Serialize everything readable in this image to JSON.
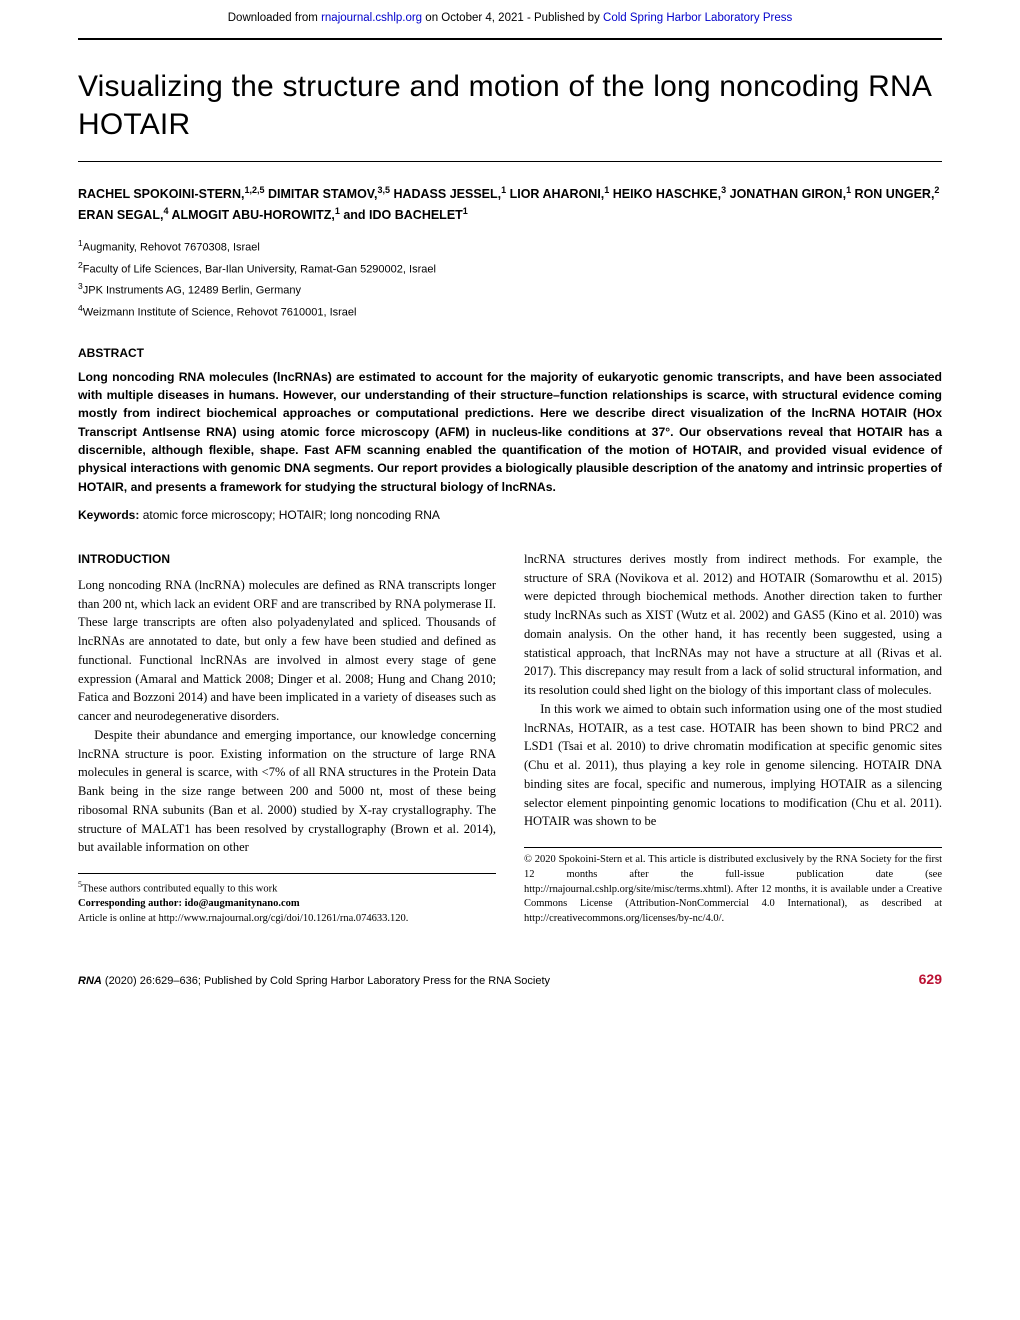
{
  "download_bar": {
    "prefix": "Downloaded from ",
    "link1_text": "rnajournal.cshlp.org",
    "mid": " on October 4, 2021 - Published by ",
    "link2_text": "Cold Spring Harbor Laboratory Press"
  },
  "title": "Visualizing the structure and motion of the long noncoding RNA HOTAIR",
  "authors_html": "RACHEL SPOKOINI-STERN,<sup>1,2,5</sup> DIMITAR STAMOV,<sup>3,5</sup> HADASS JESSEL,<sup>1</sup> LIOR AHARONI,<sup>1</sup> HEIKO HASCHKE,<sup>3</sup> JONATHAN GIRON,<sup>1</sup> RON UNGER,<sup>2</sup> ERAN SEGAL,<sup>4</sup> ALMOGIT ABU-HOROWITZ,<sup>1</sup> and IDO BACHELET<sup>1</sup>",
  "affiliations": [
    "<sup>1</sup>Augmanity, Rehovot 7670308, Israel",
    "<sup>2</sup>Faculty of Life Sciences, Bar-Ilan University, Ramat-Gan 5290002, Israel",
    "<sup>3</sup>JPK Instruments AG, 12489 Berlin, Germany",
    "<sup>4</sup>Weizmann Institute of Science, Rehovot 7610001, Israel"
  ],
  "abstract_heading": "ABSTRACT",
  "abstract_body": "Long noncoding RNA molecules (lncRNAs) are estimated to account for the majority of eukaryotic genomic transcripts, and have been associated with multiple diseases in humans. However, our understanding of their structure–function relationships is scarce, with structural evidence coming mostly from indirect biochemical approaches or computational predictions. Here we describe direct visualization of the lncRNA HOTAIR (HOx Transcript AntIsense RNA) using atomic force microscopy (AFM) in nucleus-like conditions at 37°. Our observations reveal that HOTAIR has a discernible, although flexible, shape. Fast AFM scanning enabled the quantification of the motion of HOTAIR, and provided visual evidence of physical interactions with genomic DNA segments. Our report provides a biologically plausible description of the anatomy and intrinsic properties of HOTAIR, and presents a framework for studying the structural biology of lncRNAs.",
  "keywords_label": "Keywords:",
  "keywords_value": "  atomic force microscopy; HOTAIR; long noncoding RNA",
  "introduction_heading": "INTRODUCTION",
  "col_left_p1": "Long noncoding RNA (lncRNA) molecules are defined as RNA transcripts longer than 200 nt, which lack an evident ORF and are transcribed by RNA polymerase II. These large transcripts are often also polyadenylated and spliced. Thousands of lncRNAs are annotated to date, but only a few have been studied and defined as functional. Functional lncRNAs are involved in almost every stage of gene expression (Amaral and Mattick 2008; Dinger et al. 2008; Hung and Chang 2010; Fatica and Bozzoni 2014) and have been implicated in a variety of diseases such as cancer and neurodegenerative disorders.",
  "col_left_p2": "Despite their abundance and emerging importance, our knowledge concerning lncRNA structure is poor. Existing information on the structure of large RNA molecules in general is scarce, with <7% of all RNA structures in the Protein Data Bank being in the size range between 200 and 5000 nt, most of these being ribosomal RNA subunits (Ban et al. 2000) studied by X-ray crystallography. The structure of MALAT1 has been resolved by crystallography (Brown et al. 2014), but available information on other",
  "col_right_p1": "lncRNA structures derives mostly from indirect methods. For example, the structure of SRA (Novikova et al. 2012) and HOTAIR (Somarowthu et al. 2015) were depicted through biochemical methods. Another direction taken to further study lncRNAs such as XIST (Wutz et al. 2002) and GAS5 (Kino et al. 2010) was domain analysis. On the other hand, it has recently been suggested, using a statistical approach, that lncRNAs may not have a structure at all (Rivas et al. 2017). This discrepancy may result from a lack of solid structural information, and its resolution could shed light on the biology of this important class of molecules.",
  "col_right_p2": "In this work we aimed to obtain such information using one of the most studied lncRNAs, HOTAIR, as a test case. HOTAIR has been shown to bind PRC2 and LSD1 (Tsai et al. 2010) to drive chromatin modification at specific genomic sites (Chu et al. 2011), thus playing a key role in genome silencing. HOTAIR DNA binding sites are focal, specific and numerous, implying HOTAIR as a silencing selector element pinpointing genomic locations to modification (Chu et al. 2011). HOTAIR was shown to be",
  "footnote_equal": "<sup>5</sup>These authors contributed equally to this work",
  "footnote_corr_label": "Corresponding author: ",
  "footnote_corr_email": "ido@augmanitynano.com",
  "footnote_article": "Article is online at http://www.rnajournal.org/cgi/doi/10.1261/rna.074633.120.",
  "copyright_text": "© 2020 Spokoini-Stern et al. This article is distributed exclusively by the RNA Society for the first 12 months after the full-issue publication date (see http://rnajournal.cshlp.org/site/misc/terms.xhtml). After 12 months, it is available under a Creative Commons License (Attribution-NonCommercial 4.0 International), as described at http://creativecommons.org/licenses/by-nc/4.0/.",
  "footer_journal": "RNA",
  "footer_issue": " (2020) 26:629–636; Published by Cold Spring Harbor Laboratory Press for the RNA Society",
  "footer_pagenum": "629",
  "colors": {
    "link": "#0000cc",
    "accent": "#bb1133",
    "text": "#000000"
  }
}
